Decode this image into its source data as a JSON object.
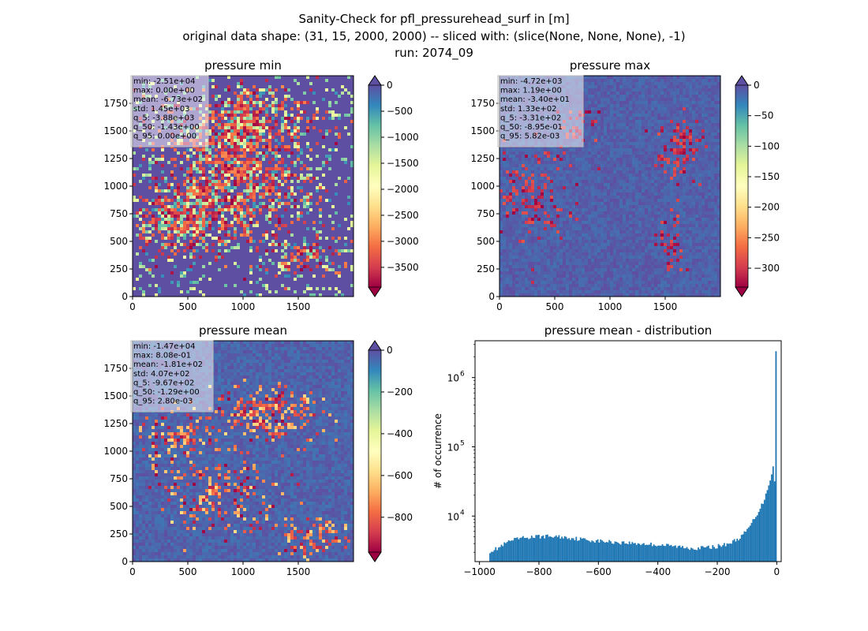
{
  "figure": {
    "title_lines": [
      "Sanity-Check for pfl_pressurehead_surf in [m]",
      "original data shape: (31, 15, 2000, 2000) -- sliced with: (slice(None, None, None), -1)",
      "run: 2074_09"
    ]
  },
  "colormap": {
    "name": "Spectral",
    "stops": [
      "#9e0142",
      "#d53e4f",
      "#f46d43",
      "#fdae61",
      "#fee08b",
      "#ffffbf",
      "#e6f598",
      "#abdda4",
      "#66c2a5",
      "#3288bd",
      "#5e4fa2"
    ]
  },
  "chart_data": [
    {
      "type": "heatmap",
      "title": "pressure min",
      "x_ticks": [
        "0",
        "500",
        "1000",
        "1500"
      ],
      "y_ticks": [
        "0",
        "250",
        "500",
        "750",
        "1000",
        "1250",
        "1500",
        "1750"
      ],
      "xlim": [
        0,
        2000
      ],
      "ylim": [
        0,
        2000
      ],
      "stats": [
        "min: -2.51e+04",
        "max: 0.00e+00",
        "mean: -6.73e+02",
        "std: 1.45e+03",
        "q_5: -3.88e+03",
        "q_50: -1.43e+00",
        "q_95: 0.00e+00"
      ],
      "colorbar": {
        "vmin": -3880,
        "vmax": 0,
        "ticks": [
          "0",
          "−500",
          "−1000",
          "−1500",
          "−2000",
          "−2500",
          "−3000",
          "−3500"
        ],
        "tick_values": [
          0,
          -500,
          -1000,
          -1500,
          -2000,
          -2500,
          -3000,
          -3500
        ],
        "extend_min": true,
        "extend_max": true
      },
      "background": "#5e4fa2",
      "dominant_level": "max"
    },
    {
      "type": "heatmap",
      "title": "pressure max",
      "x_ticks": [
        "0",
        "500",
        "1000",
        "1500"
      ],
      "y_ticks": [
        "0",
        "250",
        "500",
        "750",
        "1000",
        "1250",
        "1500",
        "1750"
      ],
      "xlim": [
        0,
        2000
      ],
      "ylim": [
        0,
        2000
      ],
      "stats": [
        "min: -4.72e+03",
        "max: 1.19e+00",
        "mean: -3.40e+01",
        "std: 1.33e+02",
        "q_5: -3.31e+02",
        "q_50: -8.95e-01",
        "q_95: 5.82e-03"
      ],
      "colorbar": {
        "vmin": -331,
        "vmax": 0,
        "ticks": [
          "0",
          "−50",
          "−100",
          "−150",
          "−200",
          "−250",
          "−300"
        ],
        "tick_values": [
          0,
          -50,
          -100,
          -150,
          -200,
          -250,
          -300
        ],
        "extend_min": true,
        "extend_max": true
      },
      "background": "#ffffbf",
      "dominant_level": "mid"
    },
    {
      "type": "heatmap",
      "title": "pressure mean",
      "x_ticks": [
        "0",
        "500",
        "1000",
        "1500"
      ],
      "y_ticks": [
        "0",
        "250",
        "500",
        "750",
        "1000",
        "1250",
        "1500",
        "1750"
      ],
      "xlim": [
        0,
        2000
      ],
      "ylim": [
        0,
        2000
      ],
      "stats": [
        "min: -1.47e+04",
        "max: 8.08e-01",
        "mean: -1.81e+02",
        "std: 4.07e+02",
        "q_5: -9.67e+02",
        "q_50: -1.29e+00",
        "q_95: 2.80e-03"
      ],
      "colorbar": {
        "vmin": -967,
        "vmax": 0,
        "ticks": [
          "0",
          "−200",
          "−400",
          "−600",
          "−800"
        ],
        "tick_values": [
          0,
          -200,
          -400,
          -600,
          -800
        ],
        "extend_min": true,
        "extend_max": true
      },
      "background": "#ffffbf",
      "dominant_level": "mid"
    },
    {
      "type": "bar",
      "subtype": "histogram",
      "title": "pressure mean - distribution",
      "ylabel": "# of occurrence",
      "yscale": "log",
      "xlim": [
        -1015,
        15
      ],
      "ylim": [
        2200,
        3400000
      ],
      "x_ticks": [
        -1000,
        -800,
        -600,
        -400,
        -200,
        0
      ],
      "x_tick_labels": [
        "−1000",
        "−800",
        "−600",
        "−400",
        "−200",
        "0"
      ],
      "y_ticks": [
        10000,
        100000,
        1000000
      ],
      "y_tick_labels": [
        "10^4",
        "10^5",
        "10^6"
      ],
      "color": "#1f77b4",
      "bins": {
        "start": -967,
        "end": 0,
        "count": 200
      },
      "profile": [
        [
          -967,
          3100
        ],
        [
          -940,
          3400
        ],
        [
          -900,
          4300
        ],
        [
          -860,
          4800
        ],
        [
          -820,
          5000
        ],
        [
          -780,
          5100
        ],
        [
          -740,
          5050
        ],
        [
          -700,
          4900
        ],
        [
          -660,
          4650
        ],
        [
          -620,
          4450
        ],
        [
          -580,
          4300
        ],
        [
          -540,
          4200
        ],
        [
          -500,
          4100
        ],
        [
          -460,
          4000
        ],
        [
          -420,
          3900
        ],
        [
          -380,
          3800
        ],
        [
          -340,
          3650
        ],
        [
          -300,
          3500
        ],
        [
          -270,
          3450
        ],
        [
          -240,
          3500
        ],
        [
          -210,
          3600
        ],
        [
          -180,
          3800
        ],
        [
          -150,
          4200
        ],
        [
          -120,
          5000
        ],
        [
          -100,
          6200
        ],
        [
          -80,
          8500
        ],
        [
          -60,
          12000
        ],
        [
          -45,
          16000
        ],
        [
          -35,
          22000
        ],
        [
          -25,
          30000
        ],
        [
          -15,
          45000
        ],
        [
          -10,
          58000
        ],
        [
          -7,
          30000
        ],
        [
          -4,
          50000
        ],
        [
          -1,
          2400000
        ]
      ]
    }
  ]
}
